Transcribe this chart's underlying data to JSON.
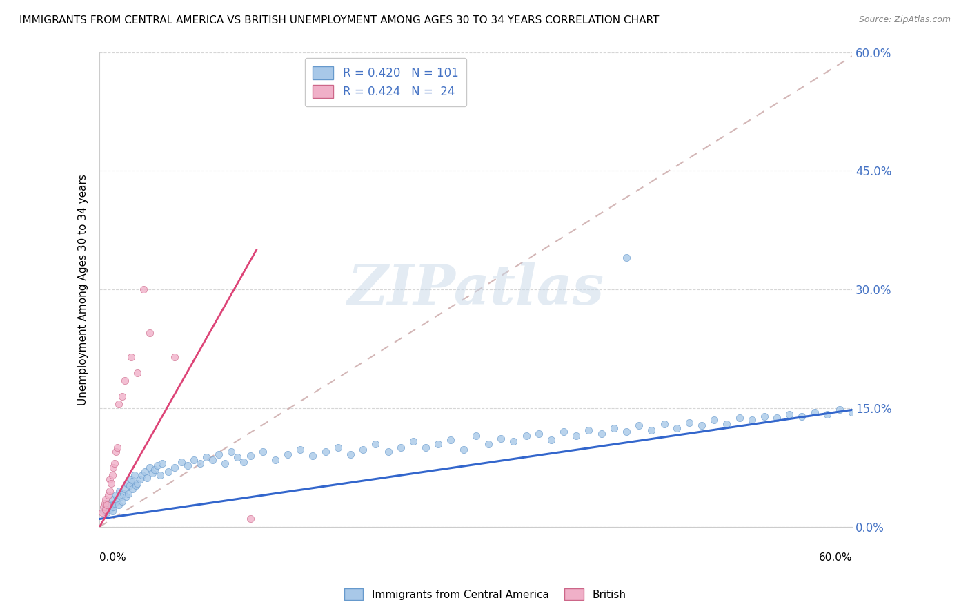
{
  "title": "IMMIGRANTS FROM CENTRAL AMERICA VS BRITISH UNEMPLOYMENT AMONG AGES 30 TO 34 YEARS CORRELATION CHART",
  "source": "Source: ZipAtlas.com",
  "ylabel": "Unemployment Among Ages 30 to 34 years",
  "series1_color": "#a8c8e8",
  "series1_edge": "#6699cc",
  "series2_color": "#f0b0c8",
  "series2_edge": "#cc6688",
  "trend1_color": "#3366cc",
  "trend2_color": "#dd4477",
  "trend_dashed_color": "#ccaaaa",
  "watermark_color": "#c8d8e8",
  "legend_text_color": "#4472c4",
  "ytick_color": "#4472c4",
  "grid_color": "#cccccc",
  "xlim": [
    0.0,
    0.6
  ],
  "ylim": [
    0.0,
    0.6
  ],
  "yticks": [
    0.0,
    0.15,
    0.3,
    0.45,
    0.6
  ],
  "ytick_labels": [
    "0.0%",
    "15.0%",
    "30.0%",
    "45.0%",
    "60.0%"
  ],
  "blue_trend_x0": 0.0,
  "blue_trend_y0": 0.01,
  "blue_trend_x1": 0.6,
  "blue_trend_y1": 0.148,
  "pink_trend_x0": 0.0,
  "pink_trend_y0": 0.0,
  "pink_trend_x1": 0.125,
  "pink_trend_y1": 0.35,
  "dashed_trend_x0": 0.0,
  "dashed_trend_y0": 0.0,
  "dashed_trend_x1": 0.6,
  "dashed_trend_y1": 0.595,
  "s1_x": [
    0.003,
    0.005,
    0.006,
    0.007,
    0.008,
    0.009,
    0.01,
    0.01,
    0.011,
    0.012,
    0.013,
    0.014,
    0.015,
    0.016,
    0.017,
    0.018,
    0.019,
    0.02,
    0.021,
    0.022,
    0.023,
    0.024,
    0.025,
    0.026,
    0.027,
    0.028,
    0.029,
    0.03,
    0.032,
    0.034,
    0.036,
    0.038,
    0.04,
    0.042,
    0.044,
    0.046,
    0.048,
    0.05,
    0.055,
    0.06,
    0.065,
    0.07,
    0.075,
    0.08,
    0.085,
    0.09,
    0.095,
    0.1,
    0.105,
    0.11,
    0.115,
    0.12,
    0.13,
    0.14,
    0.15,
    0.16,
    0.17,
    0.18,
    0.19,
    0.2,
    0.21,
    0.22,
    0.23,
    0.24,
    0.25,
    0.26,
    0.27,
    0.28,
    0.29,
    0.3,
    0.31,
    0.32,
    0.33,
    0.34,
    0.35,
    0.36,
    0.37,
    0.38,
    0.39,
    0.4,
    0.41,
    0.42,
    0.43,
    0.44,
    0.45,
    0.46,
    0.47,
    0.48,
    0.49,
    0.5,
    0.51,
    0.52,
    0.53,
    0.54,
    0.55,
    0.56,
    0.57,
    0.58,
    0.59,
    0.6,
    0.42
  ],
  "s1_y": [
    0.02,
    0.025,
    0.018,
    0.03,
    0.022,
    0.028,
    0.035,
    0.02,
    0.025,
    0.03,
    0.04,
    0.035,
    0.028,
    0.045,
    0.038,
    0.032,
    0.042,
    0.048,
    0.038,
    0.055,
    0.042,
    0.052,
    0.06,
    0.048,
    0.058,
    0.065,
    0.052,
    0.055,
    0.06,
    0.065,
    0.07,
    0.062,
    0.075,
    0.068,
    0.072,
    0.078,
    0.065,
    0.08,
    0.07,
    0.075,
    0.082,
    0.078,
    0.085,
    0.08,
    0.088,
    0.085,
    0.092,
    0.08,
    0.095,
    0.088,
    0.082,
    0.09,
    0.095,
    0.085,
    0.092,
    0.098,
    0.09,
    0.095,
    0.1,
    0.092,
    0.098,
    0.105,
    0.095,
    0.1,
    0.108,
    0.1,
    0.105,
    0.11,
    0.098,
    0.115,
    0.105,
    0.112,
    0.108,
    0.115,
    0.118,
    0.11,
    0.12,
    0.115,
    0.122,
    0.118,
    0.125,
    0.12,
    0.128,
    0.122,
    0.13,
    0.125,
    0.132,
    0.128,
    0.135,
    0.13,
    0.138,
    0.135,
    0.14,
    0.138,
    0.142,
    0.14,
    0.145,
    0.142,
    0.148,
    0.145,
    0.34
  ],
  "s2_x": [
    0.002,
    0.003,
    0.004,
    0.005,
    0.005,
    0.006,
    0.007,
    0.008,
    0.008,
    0.009,
    0.01,
    0.011,
    0.012,
    0.013,
    0.014,
    0.015,
    0.018,
    0.02,
    0.025,
    0.03,
    0.035,
    0.04,
    0.06,
    0.12
  ],
  "s2_y": [
    0.018,
    0.025,
    0.03,
    0.022,
    0.035,
    0.028,
    0.04,
    0.045,
    0.06,
    0.055,
    0.065,
    0.075,
    0.08,
    0.095,
    0.1,
    0.155,
    0.165,
    0.185,
    0.215,
    0.195,
    0.3,
    0.245,
    0.215,
    0.01
  ]
}
